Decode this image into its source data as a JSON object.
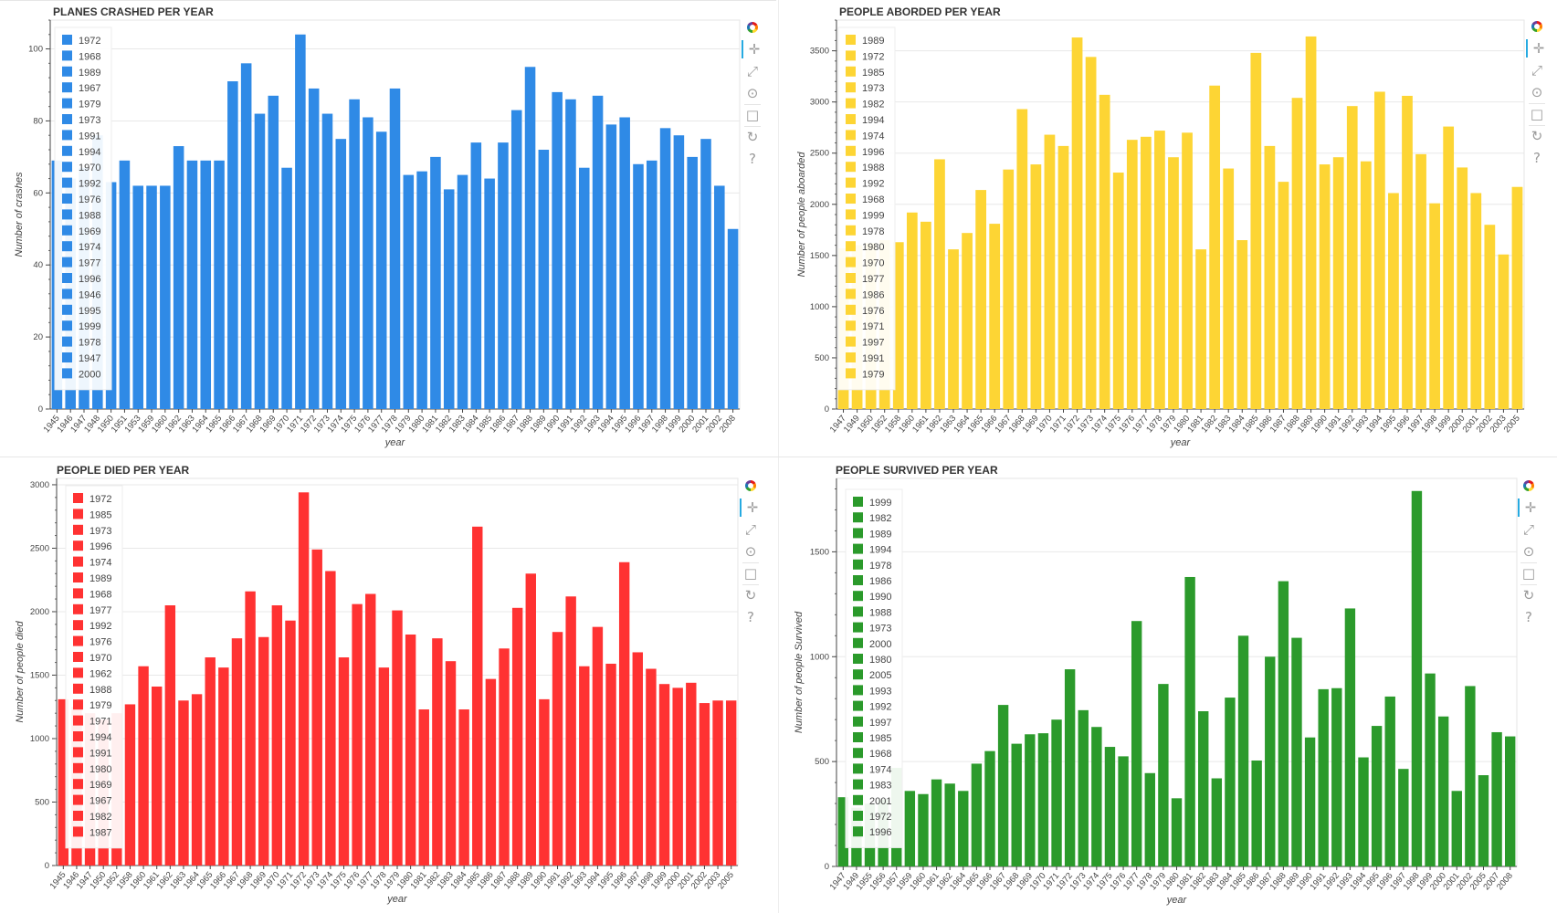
{
  "charts": [
    {
      "id": "crashes",
      "color": "#2f8ae6",
      "chart_data": {
        "type": "bar",
        "title": "PLANES CRASHED PER YEAR",
        "xlabel": "year",
        "ylabel": "Number of crashes",
        "ylim": [
          0,
          108
        ],
        "yticks": [
          0,
          20,
          40,
          60,
          80,
          100
        ],
        "grid": true,
        "legend_placement": "top-left",
        "categories": [
          "1945",
          "1946",
          "1947",
          "1948",
          "1950",
          "1951",
          "1953",
          "1959",
          "1960",
          "1962",
          "1963",
          "1964",
          "1965",
          "1966",
          "1967",
          "1968",
          "1969",
          "1970",
          "1971",
          "1972",
          "1973",
          "1974",
          "1975",
          "1976",
          "1977",
          "1978",
          "1979",
          "1980",
          "1981",
          "1982",
          "1983",
          "1984",
          "1985",
          "1986",
          "1987",
          "1988",
          "1989",
          "1990",
          "1991",
          "1992",
          "1993",
          "1994",
          "1995",
          "1996",
          "1997",
          "1998",
          "1999",
          "2000",
          "2001",
          "2002",
          "2008"
        ],
        "values": [
          69,
          64,
          67,
          76,
          63,
          69,
          62,
          62,
          62,
          73,
          69,
          69,
          69,
          91,
          96,
          82,
          87,
          67,
          104,
          89,
          82,
          75,
          86,
          81,
          77,
          89,
          65,
          66,
          70,
          61,
          65,
          74,
          64,
          74,
          83,
          95,
          72,
          88,
          86,
          67,
          87,
          79,
          81,
          68,
          69,
          78,
          76,
          70,
          75,
          62,
          50
        ],
        "legend": [
          "1972",
          "1968",
          "1989",
          "1967",
          "1979",
          "1973",
          "1991",
          "1994",
          "1970",
          "1992",
          "1976",
          "1988",
          "1969",
          "1974",
          "1977",
          "1996",
          "1946",
          "1995",
          "1999",
          "1978",
          "1947",
          "2000"
        ]
      }
    },
    {
      "id": "aboard",
      "color": "#fdd534",
      "chart_data": {
        "type": "bar",
        "title": "PEOPLE ABORDED PER YEAR",
        "xlabel": "year",
        "ylabel": "Number of people aboarded",
        "ylim": [
          0,
          3800
        ],
        "yticks": [
          0,
          500,
          1000,
          1500,
          2000,
          2500,
          3000,
          3500
        ],
        "grid": true,
        "legend_placement": "top-left",
        "categories": [
          "1947",
          "1949",
          "1950",
          "1952",
          "1958",
          "1960",
          "1961",
          "1962",
          "1963",
          "1964",
          "1965",
          "1966",
          "1967",
          "1968",
          "1969",
          "1970",
          "1971",
          "1972",
          "1973",
          "1974",
          "1975",
          "1976",
          "1977",
          "1978",
          "1979",
          "1980",
          "1981",
          "1982",
          "1983",
          "1984",
          "1985",
          "1986",
          "1987",
          "1988",
          "1989",
          "1990",
          "1991",
          "1992",
          "1993",
          "1994",
          "1995",
          "1996",
          "1997",
          "1998",
          "1999",
          "2000",
          "2001",
          "2002",
          "2003",
          "2005"
        ],
        "values": [
          1570,
          1600,
          1620,
          1650,
          1630,
          1920,
          1830,
          2440,
          1560,
          1720,
          2140,
          1810,
          2340,
          2930,
          2390,
          2680,
          2570,
          3630,
          3440,
          3070,
          2310,
          2630,
          2660,
          2720,
          2460,
          2700,
          1560,
          3160,
          2350,
          1650,
          3480,
          2570,
          2220,
          3040,
          3640,
          2390,
          2460,
          2960,
          2420,
          3100,
          2110,
          3060,
          2490,
          2010,
          2760,
          2360,
          2110,
          1800,
          1510,
          2170
        ],
        "legend": [
          "1989",
          "1972",
          "1985",
          "1973",
          "1982",
          "1994",
          "1974",
          "1996",
          "1988",
          "1992",
          "1968",
          "1999",
          "1978",
          "1980",
          "1970",
          "1977",
          "1986",
          "1976",
          "1971",
          "1997",
          "1991",
          "1979"
        ]
      }
    },
    {
      "id": "died",
      "color": "#ff3232",
      "chart_data": {
        "type": "bar",
        "title": "PEOPLE DIED PER YEAR",
        "xlabel": "year",
        "ylabel": "Number of people died",
        "ylim": [
          0,
          3050
        ],
        "yticks": [
          0,
          500,
          1000,
          1500,
          2000,
          2500,
          3000
        ],
        "grid": true,
        "legend_placement": "top-left",
        "categories": [
          "1945",
          "1946",
          "1947",
          "1950",
          "1952",
          "1958",
          "1960",
          "1961",
          "1962",
          "1963",
          "1964",
          "1965",
          "1966",
          "1967",
          "1968",
          "1969",
          "1970",
          "1971",
          "1972",
          "1973",
          "1974",
          "1975",
          "1976",
          "1977",
          "1978",
          "1979",
          "1980",
          "1981",
          "1982",
          "1983",
          "1984",
          "1985",
          "1986",
          "1987",
          "1988",
          "1989",
          "1990",
          "1991",
          "1992",
          "1993",
          "1994",
          "1995",
          "1996",
          "1997",
          "1998",
          "1999",
          "2000",
          "2001",
          "2002",
          "2003",
          "2005"
        ],
        "values": [
          1310,
          1250,
          1200,
          1150,
          1200,
          1270,
          1570,
          1410,
          2050,
          1300,
          1350,
          1640,
          1560,
          1790,
          2160,
          1800,
          2050,
          1930,
          2940,
          2490,
          2320,
          1640,
          2060,
          2140,
          1560,
          2010,
          1820,
          1230,
          1790,
          1610,
          1230,
          2670,
          1470,
          1710,
          2030,
          2300,
          1310,
          1840,
          2120,
          1570,
          1880,
          1590,
          2390,
          1680,
          1550,
          1430,
          1400,
          1440,
          1280,
          1300,
          1300
        ],
        "legend": [
          "1972",
          "1985",
          "1973",
          "1996",
          "1974",
          "1989",
          "1968",
          "1977",
          "1992",
          "1976",
          "1970",
          "1962",
          "1988",
          "1979",
          "1971",
          "1994",
          "1991",
          "1980",
          "1969",
          "1967",
          "1982",
          "1987"
        ]
      }
    },
    {
      "id": "survived",
      "color": "#2b9a2b",
      "chart_data": {
        "type": "bar",
        "title": "PEOPLE SURVIVED PER YEAR",
        "xlabel": "year",
        "ylabel": "Number of people Survived",
        "ylim": [
          0,
          1850
        ],
        "yticks": [
          0,
          500,
          1000,
          1500
        ],
        "grid": true,
        "legend_placement": "top-left",
        "categories": [
          "1947",
          "1949",
          "1955",
          "1956",
          "1957",
          "1959",
          "1960",
          "1961",
          "1962",
          "1964",
          "1965",
          "1966",
          "1967",
          "1968",
          "1969",
          "1970",
          "1971",
          "1972",
          "1973",
          "1974",
          "1975",
          "1976",
          "1977",
          "1978",
          "1979",
          "1980",
          "1981",
          "1982",
          "1983",
          "1984",
          "1985",
          "1986",
          "1987",
          "1988",
          "1989",
          "1990",
          "1991",
          "1992",
          "1993",
          "1994",
          "1995",
          "1996",
          "1997",
          "1998",
          "1999",
          "2000",
          "2001",
          "2002",
          "2005",
          "2007",
          "2008"
        ],
        "values": [
          330,
          280,
          300,
          320,
          470,
          360,
          345,
          415,
          395,
          360,
          490,
          550,
          770,
          585,
          630,
          635,
          700,
          940,
          745,
          665,
          570,
          525,
          1170,
          445,
          870,
          325,
          1380,
          740,
          420,
          805,
          1100,
          505,
          1000,
          1360,
          1090,
          615,
          845,
          850,
          1230,
          520,
          670,
          810,
          465,
          1790,
          920,
          715,
          360,
          860,
          435,
          640,
          620
        ],
        "legend": [
          "1999",
          "1982",
          "1989",
          "1994",
          "1978",
          "1986",
          "1990",
          "1988",
          "1973",
          "2000",
          "1980",
          "2005",
          "1993",
          "1992",
          "1997",
          "1985",
          "1968",
          "1974",
          "1983",
          "2001",
          "1972",
          "1996"
        ]
      }
    }
  ]
}
